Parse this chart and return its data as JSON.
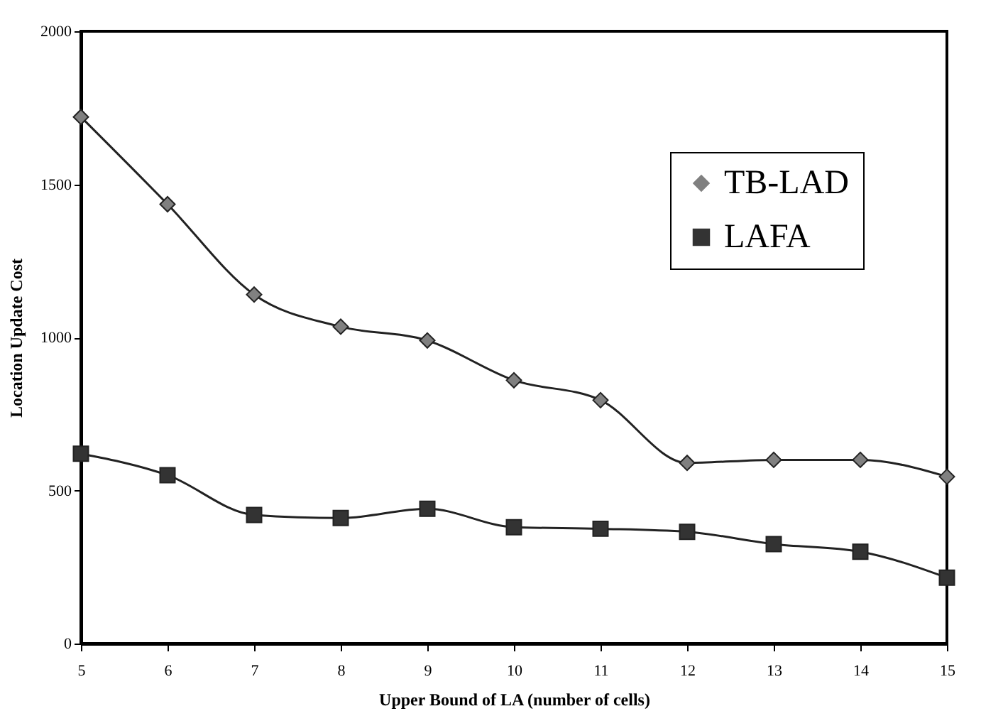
{
  "chart_data": {
    "type": "line",
    "xlabel": "Upper Bound of LA (number of cells)",
    "ylabel": "Location Update Cost",
    "x": [
      5,
      6,
      7,
      8,
      9,
      10,
      11,
      12,
      13,
      14,
      15
    ],
    "series": [
      {
        "name": "TB-LAD",
        "color": "#808080",
        "marker": "diamond",
        "values": [
          1720,
          1435,
          1140,
          1035,
          990,
          860,
          795,
          590,
          600,
          600,
          545
        ]
      },
      {
        "name": "LAFA",
        "color": "#333333",
        "marker": "square",
        "values": [
          620,
          550,
          420,
          410,
          440,
          380,
          375,
          365,
          325,
          300,
          215
        ]
      }
    ],
    "xlim": [
      5,
      15
    ],
    "xticks": [
      5,
      6,
      7,
      8,
      9,
      10,
      11,
      12,
      13,
      14,
      15
    ],
    "ylim": [
      0,
      2000
    ],
    "yticks": [
      0,
      500,
      1000,
      1500,
      2000
    ],
    "grid": false,
    "legend": "top right",
    "line_style": "solid"
  }
}
